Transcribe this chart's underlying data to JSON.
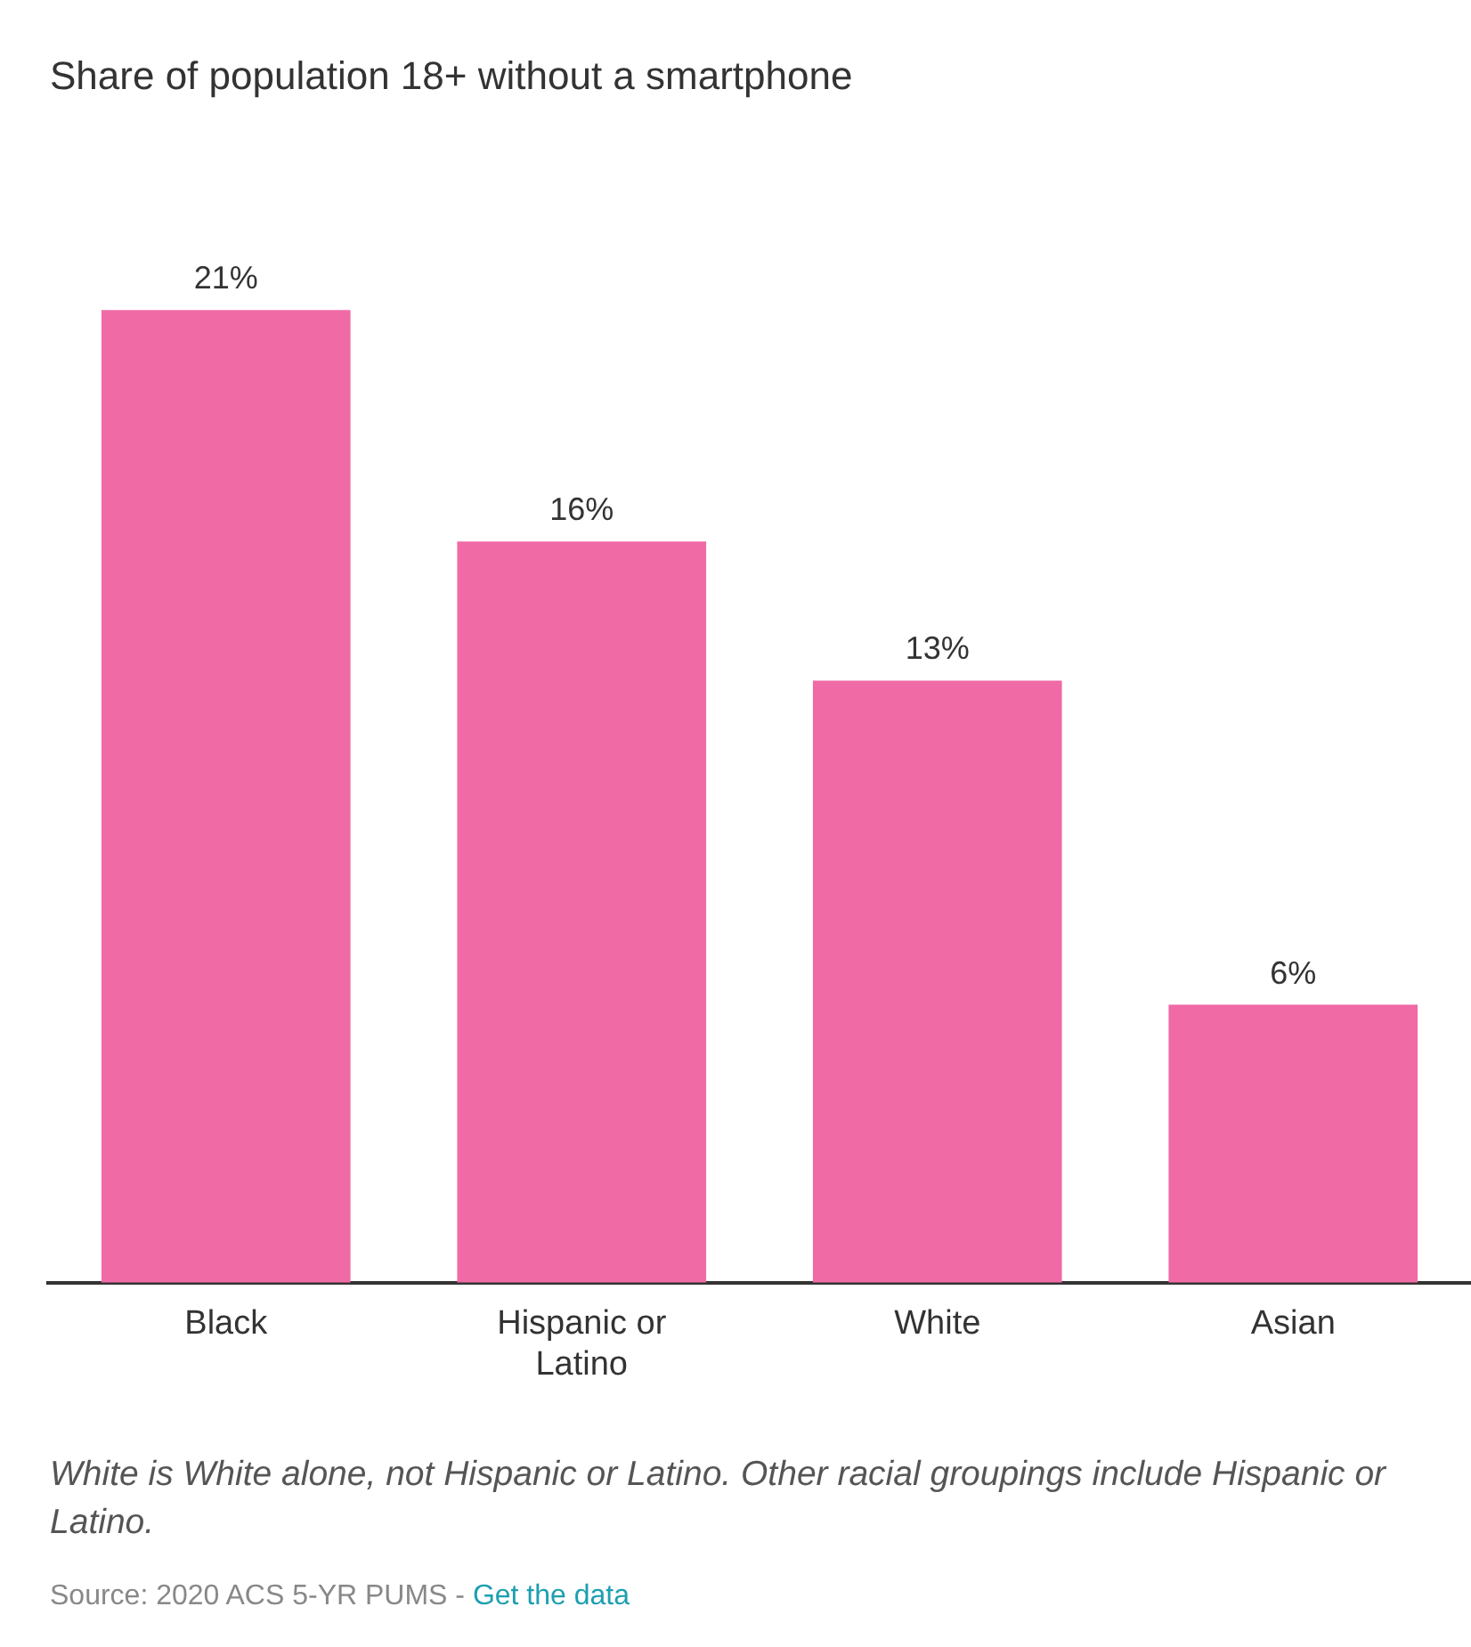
{
  "chart_data": {
    "type": "bar",
    "title": "Share of population 18+ without a smartphone",
    "categories": [
      "Black",
      "Hispanic or Latino",
      "White",
      "Asian"
    ],
    "values": [
      21,
      16,
      13,
      6
    ],
    "value_labels": [
      "21%",
      "16%",
      "13%",
      "6%"
    ],
    "color": "#f06aa6",
    "grid": false,
    "legend": false,
    "annotations": [
      "White is White alone, not Hispanic or Latino. Other racial groupings include Hispanic or Latino.",
      "Source: 2020 ACS 5-YR PUMS -",
      "Get the data"
    ]
  }
}
